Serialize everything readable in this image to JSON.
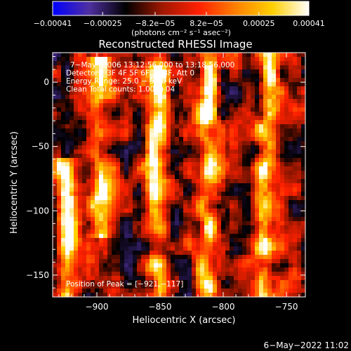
{
  "chart_data": {
    "type": "heatmap",
    "title": "Reconstructed RHESSI Image",
    "xlabel": "Heliocentric X (arcsec)",
    "ylabel": "Heliocentric Y (arcsec)",
    "xlim": [
      -935,
      -735
    ],
    "ylim": [
      -167,
      23
    ],
    "x_ticks": [
      -900,
      -850,
      -800,
      -750
    ],
    "x_tick_labels": [
      "−900",
      "−850",
      "−800",
      "−750"
    ],
    "y_ticks": [
      0,
      -50,
      -100,
      -150
    ],
    "y_tick_labels": [
      "0",
      "−50",
      "−100",
      "−150"
    ],
    "colorbar": {
      "range": [
        -0.00041,
        0.00041
      ],
      "ticks": [
        -0.00041,
        -0.00025,
        -8.2e-05,
        8.2e-05,
        0.00025,
        0.00041
      ],
      "tick_labels": [
        "−0.00041",
        "−0.00025",
        "−8.2e−05",
        "8.2e−05",
        "0.00025",
        "0.00041"
      ],
      "label": "(photons cm⁻² s⁻¹ asec⁻²)",
      "colors": [
        "#0000ff",
        "#5030a0",
        "#000000",
        "#a01800",
        "#ff2000",
        "#ff8000",
        "#ffd000",
        "#ffffff"
      ]
    },
    "annotations": [
      "7−May−2006 13:12:56.000 to 13:18:56.000",
      "Detectors: 3F 4F 5F 6F 7F 8F, Att 0",
      "Energy Range: 25.0 − 50.0 keV",
      "Clean     Total counts: 1.00E+04"
    ],
    "peak_label": "Position of Peak = [−921,−117]",
    "peak": [
      -921,
      -117
    ],
    "bright_ridges": [
      {
        "x": -925,
        "y_from": -167,
        "y_to": -60
      },
      {
        "x": -897,
        "y_from": -120,
        "y_to": 20
      },
      {
        "x": -852,
        "y_from": -167,
        "y_to": 23
      },
      {
        "x": -812,
        "y_from": -167,
        "y_to": 23
      },
      {
        "x": -765,
        "y_from": -167,
        "y_to": 23
      }
    ]
  },
  "footer": {
    "timestamp": "6−May−2022 11:02"
  }
}
